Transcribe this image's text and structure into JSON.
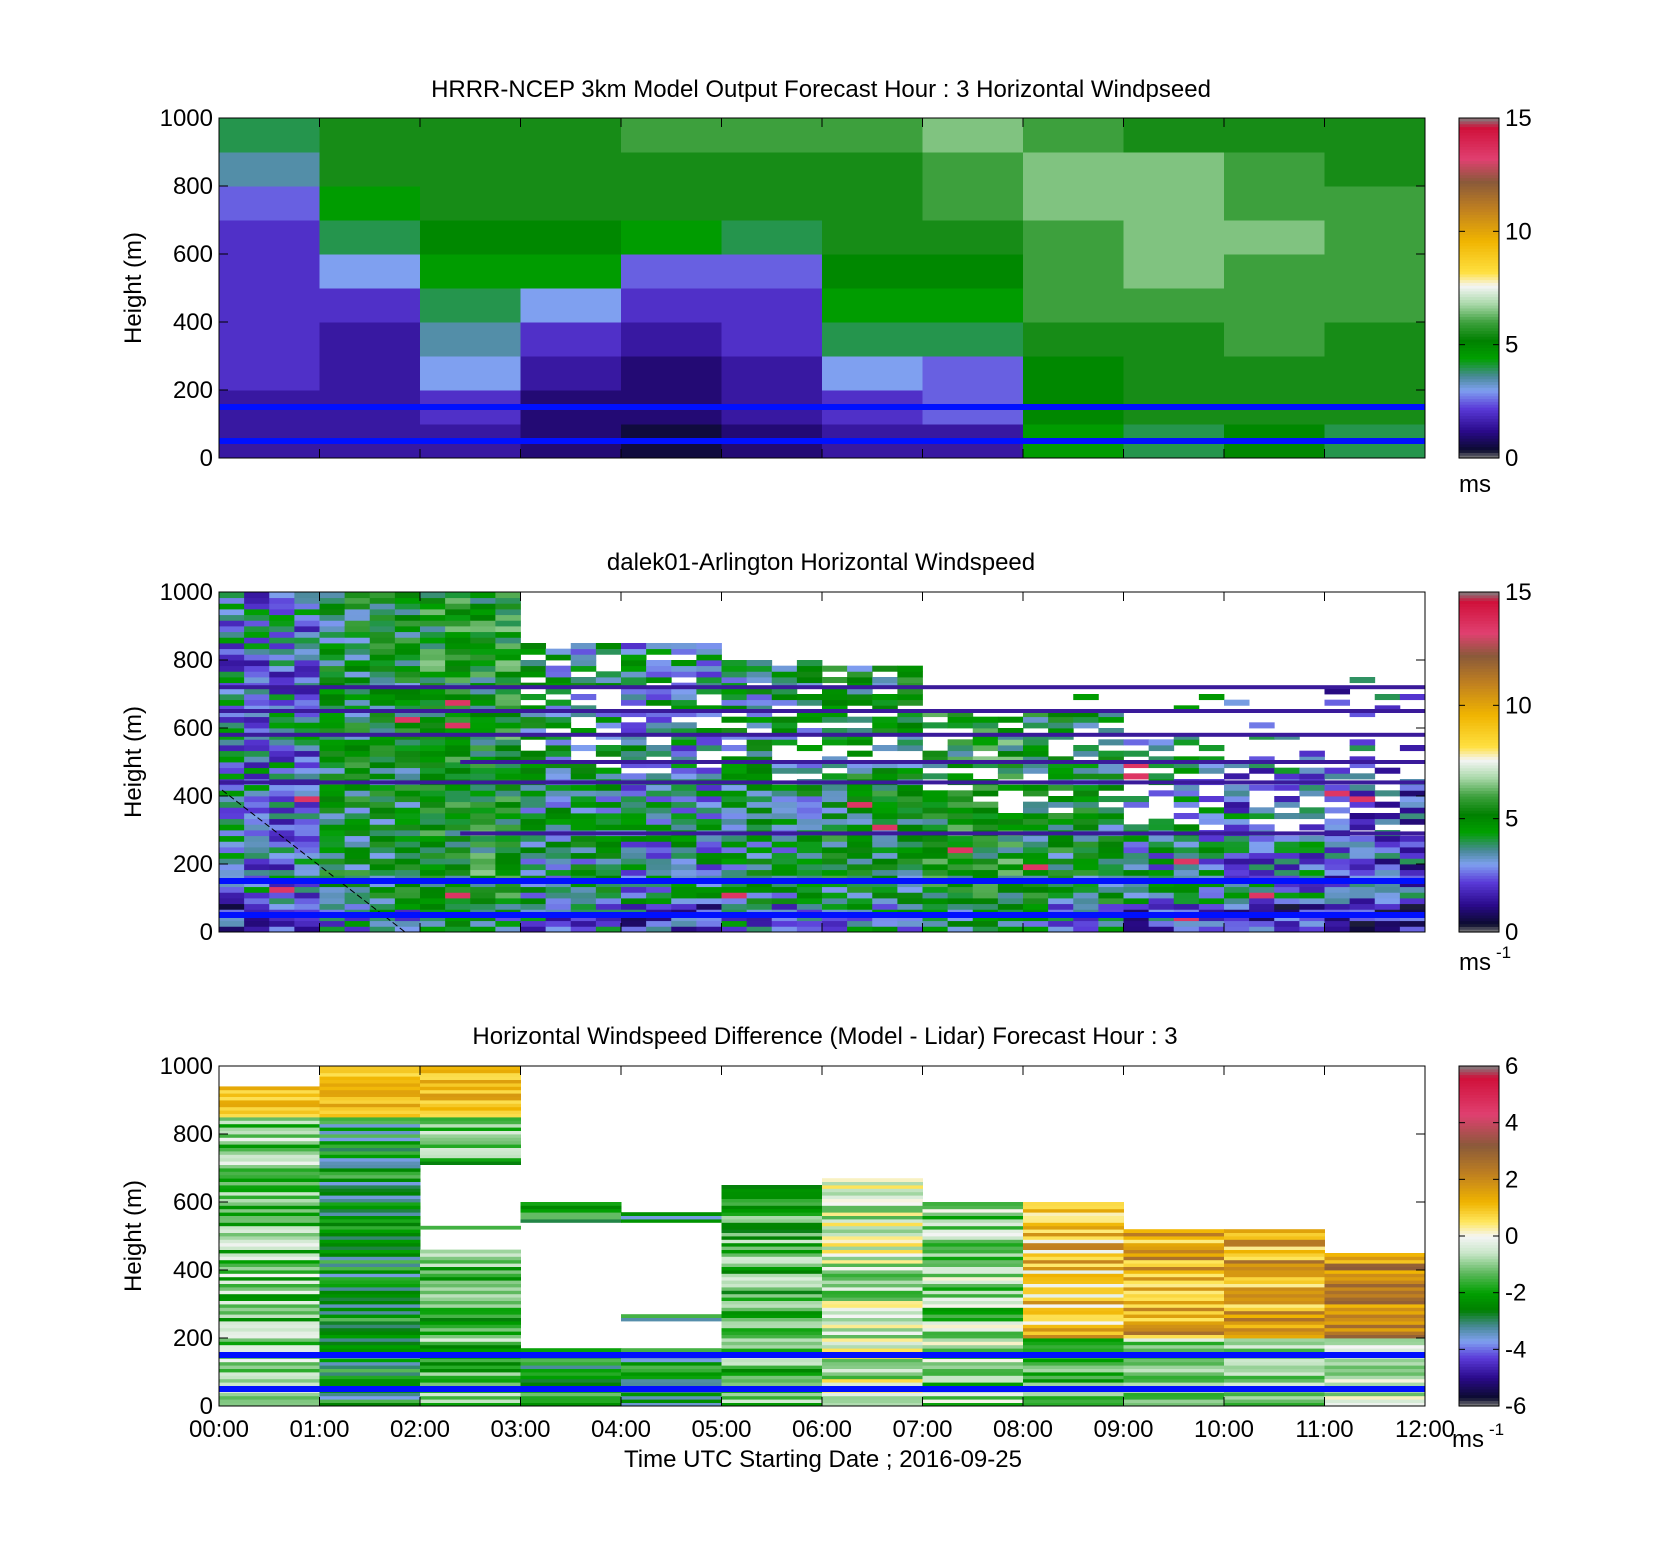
{
  "chart_data": [
    {
      "type": "heatmap",
      "title": "HRRR-NCEP 3km Model Output   Forecast Hour : 3 Horizontal Windpseed",
      "ylabel": "Height (m)",
      "xlabel": "",
      "x_range": [
        "00:00",
        "12:00"
      ],
      "ylim": [
        0,
        1000
      ],
      "yticks": [
        "0",
        "200",
        "400",
        "600",
        "800",
        "1000"
      ],
      "colorbar": {
        "min": 0,
        "max": 15,
        "ticks": [
          "0",
          "5",
          "10",
          "15"
        ],
        "unit": "ms",
        "unit_sup": ""
      },
      "color_scale": "speed",
      "time_columns": 12,
      "height_rows": 10,
      "values": [
        [
          1.5,
          1.5,
          1.5,
          1.0,
          0.5,
          1.0,
          1.5,
          1.5,
          4.5,
          4.0,
          5.0,
          4.0
        ],
        [
          1.5,
          1.5,
          2.0,
          1.0,
          1.0,
          1.5,
          2.0,
          2.5,
          5.0,
          5.5,
          5.5,
          5.5
        ],
        [
          2.0,
          1.5,
          3.0,
          1.5,
          1.0,
          1.5,
          3.0,
          2.5,
          5.0,
          5.5,
          5.5,
          5.5
        ],
        [
          2.0,
          1.5,
          3.5,
          2.0,
          1.5,
          2.0,
          4.0,
          4.0,
          5.5,
          5.5,
          6.0,
          5.5
        ],
        [
          2.0,
          2.0,
          4.0,
          3.0,
          2.0,
          2.0,
          4.5,
          4.5,
          6.0,
          6.0,
          6.0,
          6.0
        ],
        [
          2.0,
          3.0,
          4.5,
          4.5,
          2.5,
          2.5,
          5.0,
          5.0,
          6.0,
          6.5,
          6.0,
          6.0
        ],
        [
          2.0,
          4.0,
          5.0,
          5.0,
          4.5,
          4.0,
          5.5,
          5.5,
          6.0,
          6.5,
          6.5,
          6.0
        ],
        [
          2.5,
          4.5,
          5.5,
          5.5,
          5.5,
          5.5,
          5.5,
          6.0,
          6.5,
          6.5,
          6.0,
          6.0
        ],
        [
          3.5,
          5.5,
          5.5,
          5.5,
          5.5,
          5.5,
          5.5,
          6.0,
          6.5,
          6.5,
          6.0,
          5.5
        ],
        [
          4.0,
          5.5,
          5.5,
          5.5,
          6.0,
          6.0,
          6.0,
          6.5,
          6.0,
          5.5,
          5.5,
          5.5
        ]
      ],
      "reference_lines_m": [
        50,
        150
      ]
    },
    {
      "type": "heatmap",
      "title": "dalek01-Arlington  Horizontal Windspeed",
      "ylabel": "Height (m)",
      "xlabel": "",
      "x_range": [
        "00:00",
        "12:00"
      ],
      "ylim": [
        0,
        1000
      ],
      "yticks": [
        "0",
        "200",
        "400",
        "600",
        "800",
        "1000"
      ],
      "colorbar": {
        "min": 0,
        "max": 15,
        "ticks": [
          "0",
          "5",
          "10",
          "15"
        ],
        "unit": "ms",
        "unit_sup": "-1"
      },
      "color_scale": "speed",
      "time_step_minutes": 15,
      "height_rows_depicted": 60,
      "max_height_by_hour_m": [
        1000,
        1000,
        1000,
        850,
        850,
        800,
        780,
        650,
        650,
        560,
        520,
        480
      ],
      "typical_speed_by_hour_ms": [
        3.0,
        4.5,
        5.0,
        4.0,
        3.5,
        4.0,
        4.5,
        5.0,
        4.5,
        3.5,
        3.0,
        2.5
      ],
      "reference_lines_m": [
        50,
        150
      ]
    },
    {
      "type": "heatmap",
      "title": "Horizontal Windspeed Difference (Model - Lidar) Forecast Hour : 3",
      "ylabel": "Height (m)",
      "xlabel": "Time UTC  Starting Date ; 2016-09-25",
      "x_ticks": [
        "00:00",
        "01:00",
        "02:00",
        "03:00",
        "04:00",
        "05:00",
        "06:00",
        "07:00",
        "08:00",
        "09:00",
        "10:00",
        "11:00",
        "12:00"
      ],
      "ylim": [
        0,
        1000
      ],
      "yticks": [
        "0",
        "200",
        "400",
        "600",
        "800",
        "1000"
      ],
      "colorbar": {
        "min": -6,
        "max": 6,
        "ticks": [
          "-6",
          "-4",
          "-2",
          "0",
          "2",
          "4",
          "6"
        ],
        "unit": "ms",
        "unit_sup": "-1"
      },
      "color_scale": "diff",
      "column_top_m": [
        940,
        1000,
        1000,
        600,
        570,
        650,
        670,
        600,
        600,
        520,
        520,
        450
      ],
      "column_mean_diff_ms": [
        -1.2,
        -2.5,
        -1.5,
        -2.2,
        -2.5,
        -1.5,
        -0.5,
        -1.0,
        1.0,
        1.5,
        1.5,
        2.0
      ],
      "reference_lines_m": [
        50,
        150
      ]
    }
  ]
}
